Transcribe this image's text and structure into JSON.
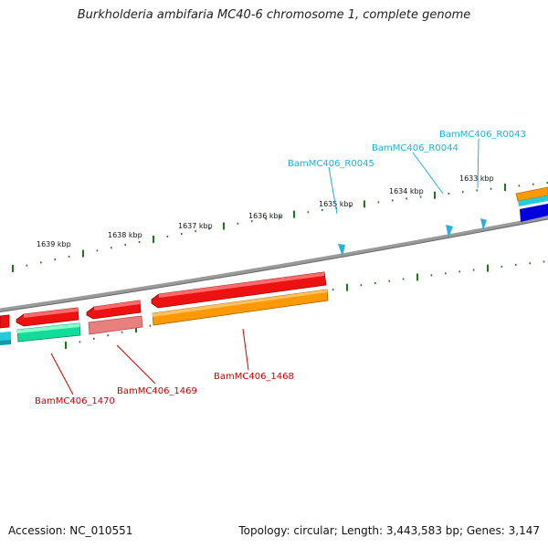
{
  "title": "Burkholderia ambifaria MC40-6 chromosome 1, complete genome",
  "footer": {
    "accession": "Accession: NC_010551",
    "topology": "Topology: circular; Length: 3,443,583 bp; Genes: 3,147"
  },
  "scale": {
    "ticks": [
      {
        "kbp": 1633,
        "label": "1633 kbp"
      },
      {
        "kbp": 1634,
        "label": "1634 kbp"
      },
      {
        "kbp": 1635,
        "label": "1635 kbp"
      },
      {
        "kbp": 1636,
        "label": "1636 kbp"
      },
      {
        "kbp": 1637,
        "label": "1637 kbp"
      },
      {
        "kbp": 1638,
        "label": "1638 kbp"
      },
      {
        "kbp": 1639,
        "label": "1639 kbp"
      }
    ]
  },
  "rna_genes": [
    {
      "name": "BamMC406_R0043"
    },
    {
      "name": "BamMC406_R0044"
    },
    {
      "name": "BamMC406_R0045"
    }
  ],
  "cds_genes": [
    {
      "name": "BamMC406_1468"
    },
    {
      "name": "BamMC406_1469"
    },
    {
      "name": "BamMC406_1470"
    }
  ],
  "colors": {
    "rna_label": "#1ab0e6",
    "cds_label": "#cc0000",
    "tick": "#1a7a1a",
    "backbone": "#8a8a8a",
    "red": "#ee1111",
    "orange": "#ff9900",
    "pink": "#e88080",
    "teal": "#11dd99",
    "cyan": "#22ccdd",
    "blue": "#0000dd"
  }
}
